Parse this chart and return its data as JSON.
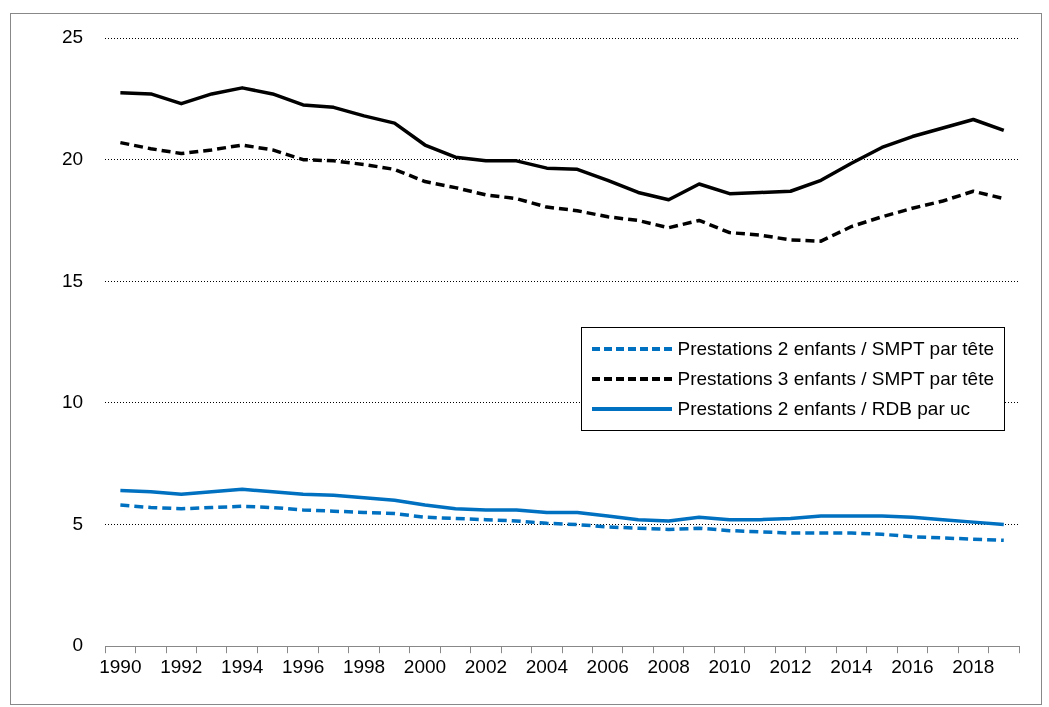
{
  "chart_data": {
    "type": "line",
    "categories": [
      "1990",
      null,
      "1992",
      null,
      "1994",
      null,
      "1996",
      null,
      "1998",
      null,
      "2000",
      null,
      "2002",
      null,
      "2004",
      null,
      "2006",
      null,
      "2008",
      null,
      "2010",
      null,
      "2012",
      null,
      "2014",
      null,
      "2016",
      null,
      "2018",
      null
    ],
    "series": [
      {
        "color": "#000000",
        "line_style": "solid",
        "values": [
          22.75,
          22.7,
          22.3,
          22.7,
          22.95,
          22.7,
          22.25,
          22.15,
          21.8,
          21.5,
          20.6,
          20.1,
          19.95,
          19.95,
          19.65,
          19.6,
          19.15,
          18.65,
          18.35,
          19.0,
          18.6,
          18.65,
          18.7,
          19.15,
          19.85,
          20.5,
          20.95,
          21.3,
          21.65,
          21.2
        ]
      },
      {
        "name": "Prestations 2 enfants / SMPT par tête",
        "color": "#0070c0",
        "line_style": "dashed",
        "values": [
          5.8,
          5.7,
          5.65,
          5.7,
          5.75,
          5.7,
          5.6,
          5.55,
          5.5,
          5.45,
          5.3,
          5.25,
          5.2,
          5.15,
          5.05,
          5.0,
          4.9,
          4.85,
          4.8,
          4.85,
          4.75,
          4.7,
          4.65,
          4.65,
          4.65,
          4.6,
          4.5,
          4.45,
          4.4,
          4.35
        ]
      },
      {
        "name": "Prestations 3 enfants / SMPT par tête",
        "color": "#000000",
        "line_style": "dashed",
        "values": [
          20.7,
          20.45,
          20.25,
          20.4,
          20.6,
          20.4,
          20.0,
          19.95,
          19.8,
          19.6,
          19.1,
          18.85,
          18.55,
          18.4,
          18.05,
          17.9,
          17.65,
          17.5,
          17.2,
          17.5,
          17.0,
          16.9,
          16.7,
          16.65,
          17.25,
          17.65,
          18.0,
          18.3,
          18.7,
          18.4
        ]
      },
      {
        "name": "Prestations 2 enfants / RDB par uc",
        "color": "#0070c0",
        "line_style": "solid",
        "values": [
          6.4,
          6.35,
          6.25,
          6.35,
          6.45,
          6.35,
          6.25,
          6.2,
          6.1,
          6.0,
          5.8,
          5.65,
          5.6,
          5.6,
          5.5,
          5.5,
          5.35,
          5.2,
          5.15,
          5.3,
          5.2,
          5.2,
          5.25,
          5.35,
          5.35,
          5.35,
          5.3,
          5.2,
          5.1,
          5.0
        ]
      }
    ],
    "ylim": [
      0,
      25
    ],
    "yticks": [
      0,
      5,
      10,
      15,
      20,
      25
    ],
    "grid": "y",
    "legend": "right",
    "marker": "none"
  }
}
